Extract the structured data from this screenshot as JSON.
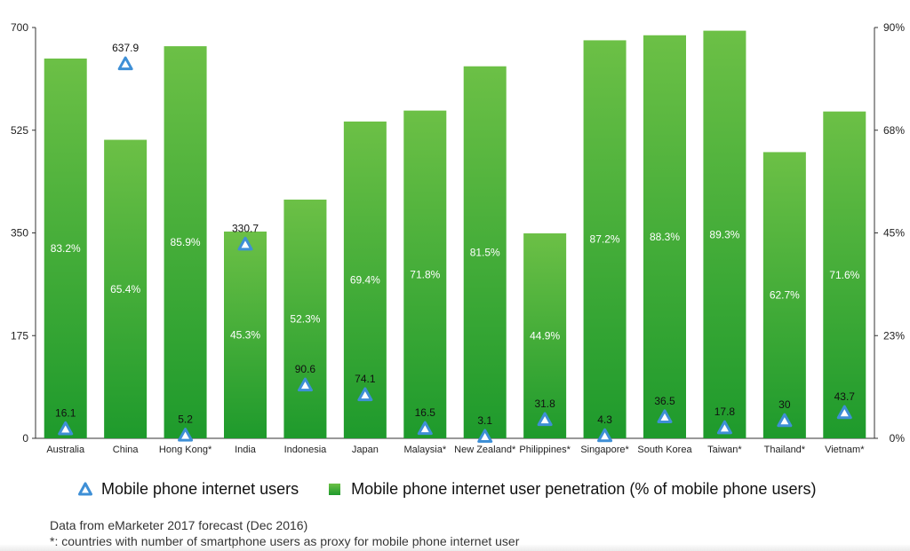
{
  "chart_data": {
    "type": "bar",
    "categories": [
      "Australia",
      "China",
      "Hong Kong*",
      "India",
      "Indonesia",
      "Japan",
      "Malaysia*",
      "New Zealand*",
      "Philippines*",
      "Singapore*",
      "South Korea",
      "Taiwan*",
      "Thailand*",
      "Vietnam*"
    ],
    "series": [
      {
        "name": "Mobile phone internet user penetration (% of mobile phone users)",
        "axis": "right",
        "type": "bar",
        "values": [
          83.2,
          65.4,
          85.9,
          45.3,
          52.3,
          69.4,
          71.8,
          81.5,
          44.9,
          87.2,
          88.3,
          89.3,
          62.7,
          71.6
        ],
        "labels": [
          "83.2%",
          "65.4%",
          "85.9%",
          "45.3%",
          "52.3%",
          "69.4%",
          "71.8%",
          "81.5%",
          "44.9%",
          "87.2%",
          "88.3%",
          "89.3%",
          "62.7%",
          "71.6%"
        ]
      },
      {
        "name": "Mobile phone internet users",
        "axis": "left",
        "type": "scatter",
        "marker": "triangle",
        "values": [
          16.1,
          637.9,
          5.2,
          330.7,
          90.6,
          74.1,
          16.5,
          3.1,
          31.8,
          4.3,
          36.5,
          17.8,
          30,
          43.7
        ],
        "labels": [
          "16.1",
          "637.9",
          "5.2",
          "330.7",
          "90.6",
          "74.1",
          "16.5",
          "3.1",
          "31.8",
          "4.3",
          "36.5",
          "17.8",
          "30",
          "43.7"
        ]
      }
    ],
    "y_left": {
      "range": [
        0,
        700
      ],
      "ticks": [
        0,
        175,
        350,
        525,
        700
      ],
      "tick_labels": [
        "0",
        "175",
        "350",
        "525",
        "700"
      ]
    },
    "y_right": {
      "range": [
        0,
        90
      ],
      "ticks": [
        0,
        22.5,
        45,
        67.5,
        90
      ],
      "tick_labels": [
        "0%",
        "23%",
        "45%",
        "68%",
        "90%"
      ]
    },
    "legend_position": "bottom",
    "grid": false,
    "colors": {
      "bar_top": "#6cc046",
      "bar_bottom": "#1e9a2c",
      "marker": "#3e8fd6"
    }
  },
  "legend": {
    "users_label": "Mobile phone internet users",
    "penetration_label": "Mobile phone internet user penetration (% of mobile phone users)"
  },
  "notes": {
    "source": "Data from eMarketer 2017 forecast (Dec 2016)",
    "footnote": "*: countries with number of smartphone users as proxy for mobile phone internet user"
  }
}
